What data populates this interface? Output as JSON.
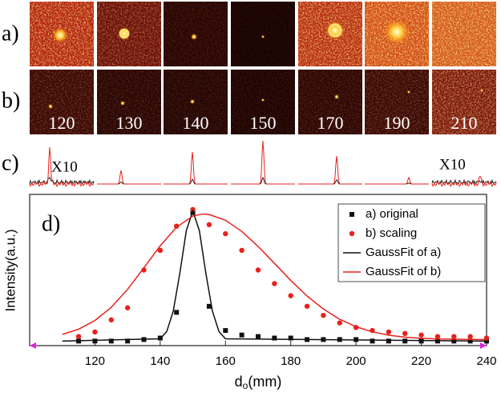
{
  "images": {
    "row_labels": [
      "a)",
      "b)"
    ],
    "distances": [
      120,
      130,
      140,
      150,
      170,
      190,
      210
    ]
  },
  "profiles": {
    "label": "c)",
    "annotations": [
      "X10",
      "X10"
    ]
  },
  "chart_data": {
    "type": "scatter",
    "panel_label": "d)",
    "xlabel_main": "d",
    "xlabel_sub": "o",
    "xlabel_unit": "(mm)",
    "ylabel": "Intensity(a.u.)",
    "xlim": [
      100,
      240
    ],
    "xticks": [
      120,
      140,
      160,
      180,
      200,
      220,
      240
    ],
    "ylim": [
      0,
      1
    ],
    "legend": "upper right",
    "series": [
      {
        "name": "a) original",
        "type": "scatter",
        "marker": "square",
        "color": "#111111",
        "x": [
          115,
          120,
          125,
          130,
          135,
          140,
          145,
          150,
          155,
          160,
          165,
          170,
          175,
          180,
          185,
          190,
          195,
          200,
          205,
          210,
          215,
          220,
          225,
          230,
          235,
          240
        ],
        "values": [
          0.03,
          0.03,
          0.03,
          0.03,
          0.04,
          0.05,
          0.22,
          0.88,
          0.26,
          0.1,
          0.07,
          0.06,
          0.05,
          0.05,
          0.04,
          0.04,
          0.04,
          0.04,
          0.03,
          0.03,
          0.03,
          0.03,
          0.03,
          0.03,
          0.03,
          0.03
        ]
      },
      {
        "name": "b) scaling",
        "type": "scatter",
        "marker": "circle",
        "color": "#e8211c",
        "x": [
          115,
          120,
          125,
          130,
          135,
          140,
          145,
          150,
          155,
          160,
          165,
          170,
          175,
          180,
          185,
          190,
          195,
          200,
          205,
          210,
          215,
          220,
          225,
          230,
          235,
          240
        ],
        "values": [
          0.06,
          0.09,
          0.17,
          0.25,
          0.5,
          0.63,
          0.79,
          0.9,
          0.8,
          0.74,
          0.63,
          0.5,
          0.41,
          0.33,
          0.26,
          0.2,
          0.15,
          0.12,
          0.1,
          0.09,
          0.08,
          0.07,
          0.06,
          0.06,
          0.06,
          0.05
        ]
      },
      {
        "name": "GaussFit of a)",
        "type": "line",
        "color": "#111111",
        "x": [
          110,
          140,
          142,
          144,
          146,
          148,
          150,
          152,
          154,
          156,
          158,
          160,
          240
        ],
        "values": [
          0.03,
          0.045,
          0.093,
          0.228,
          0.477,
          0.76,
          0.89,
          0.76,
          0.477,
          0.228,
          0.093,
          0.045,
          0.03
        ]
      },
      {
        "name": "GaussFit of b)",
        "type": "line",
        "color": "#e8211c",
        "x": [
          110,
          115,
          120,
          125,
          130,
          135,
          140,
          145,
          150,
          153,
          155,
          160,
          165,
          170,
          175,
          180,
          185,
          190,
          195,
          200,
          205,
          210,
          215,
          220,
          225,
          230,
          235,
          240
        ],
        "values": [
          0.074,
          0.108,
          0.166,
          0.253,
          0.372,
          0.514,
          0.66,
          0.783,
          0.857,
          0.87,
          0.867,
          0.829,
          0.755,
          0.656,
          0.544,
          0.431,
          0.328,
          0.242,
          0.174,
          0.125,
          0.091,
          0.069,
          0.056,
          0.048,
          0.044,
          0.042,
          0.041,
          0.04
        ]
      }
    ]
  }
}
